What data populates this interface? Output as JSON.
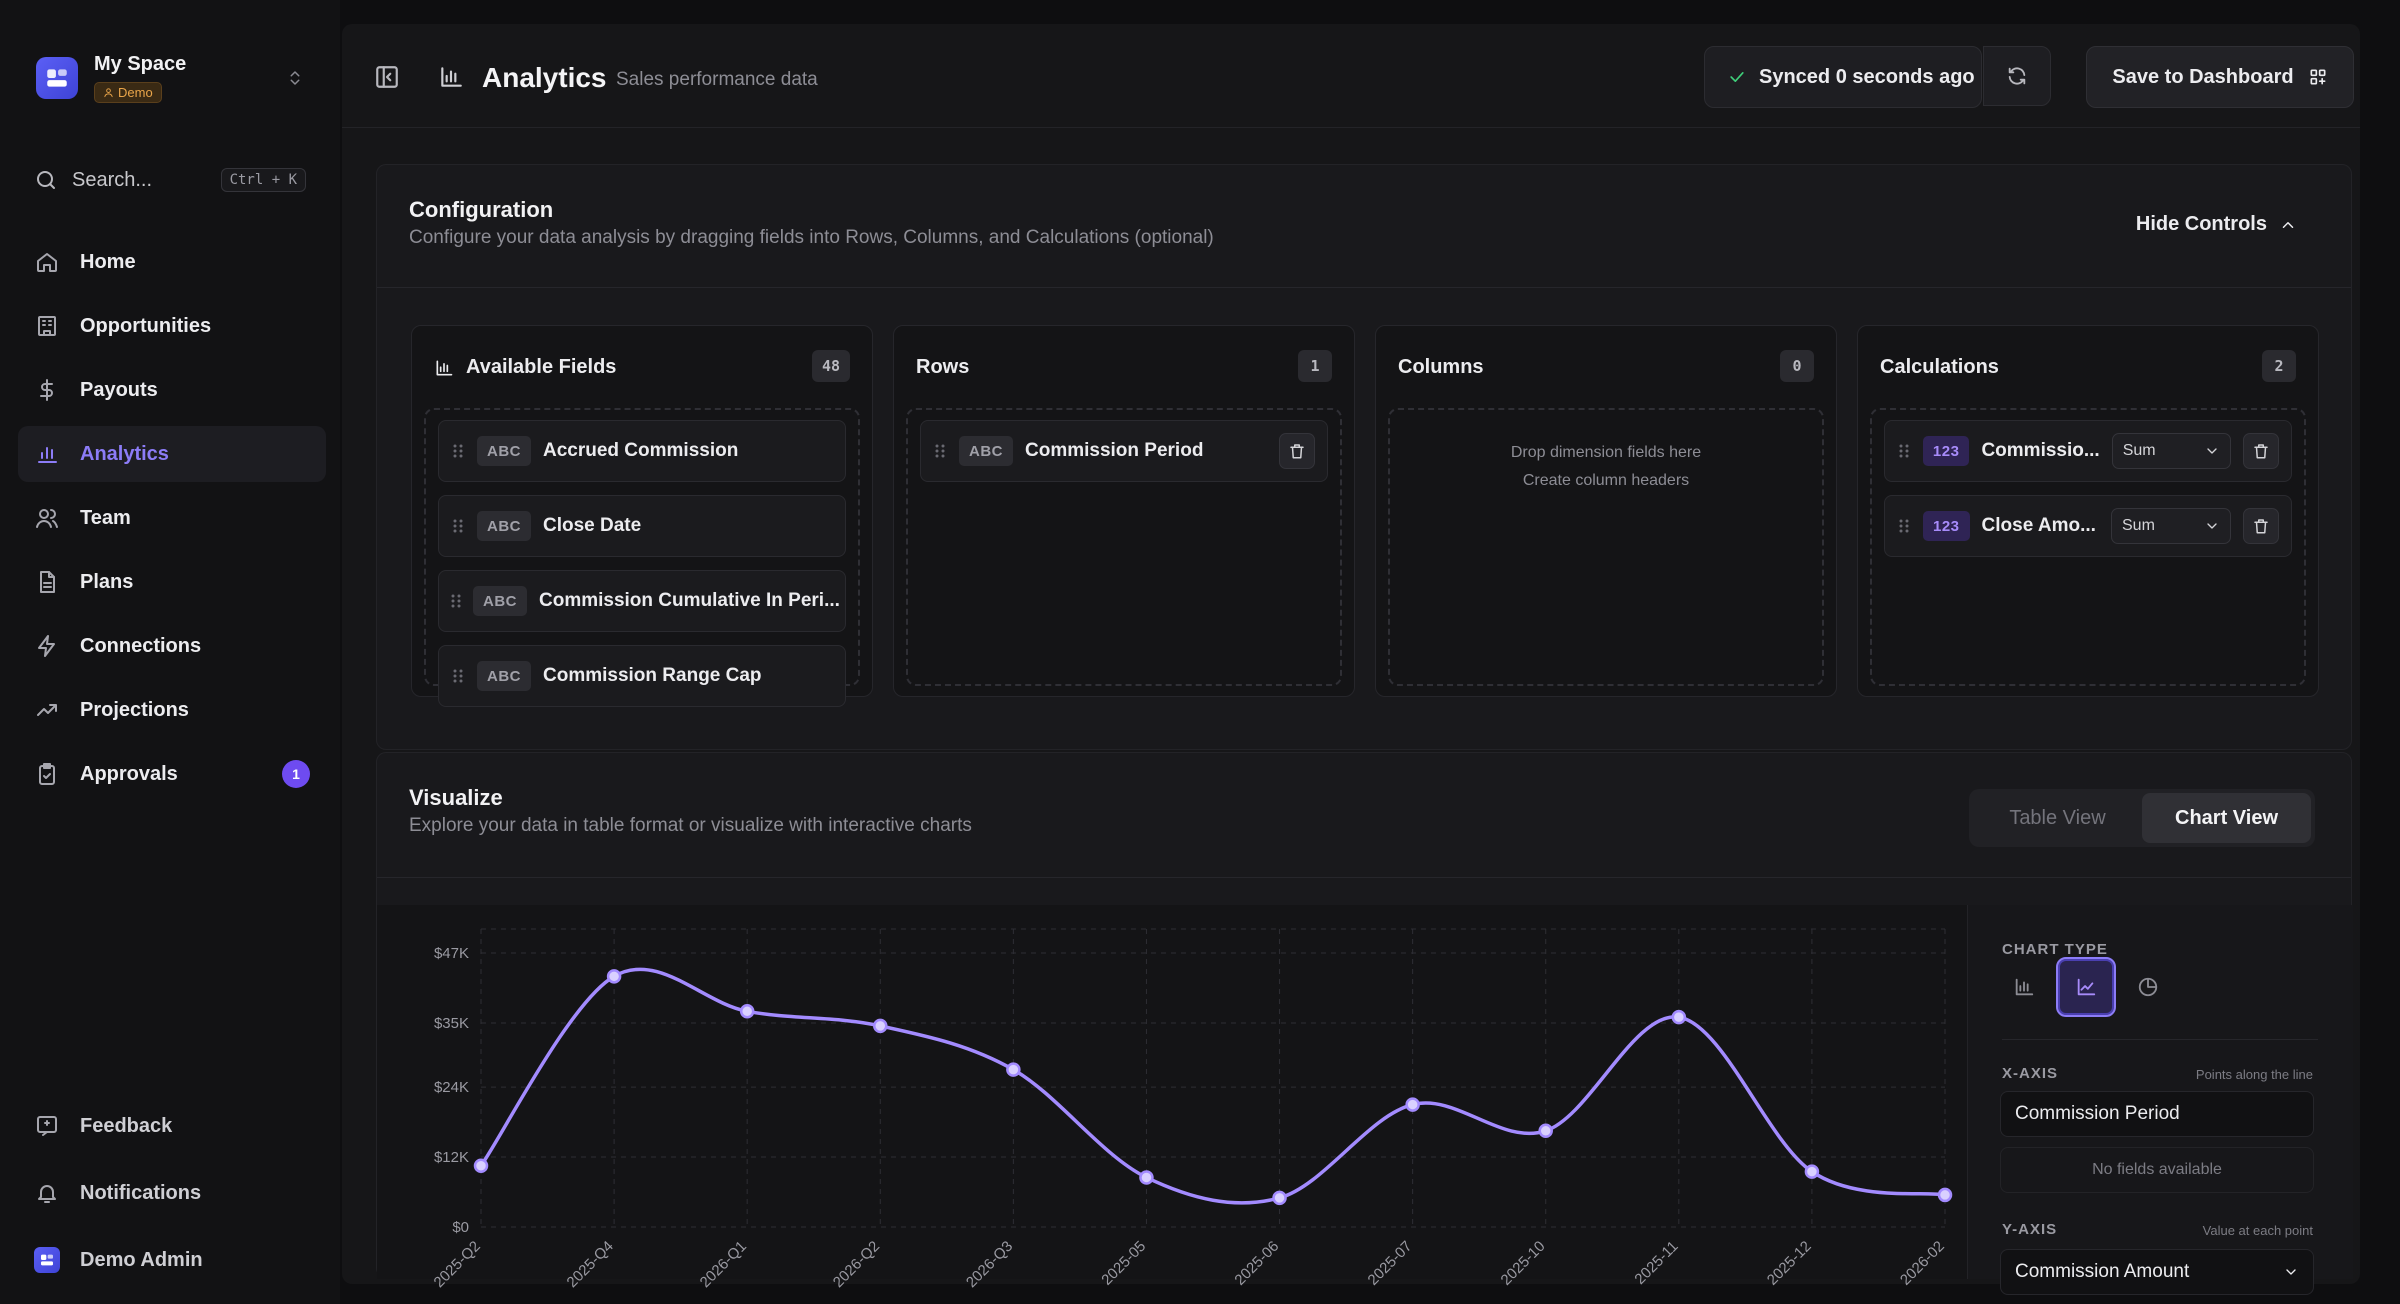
{
  "sidebar": {
    "workspace": {
      "name": "My Space",
      "badge": "Demo"
    },
    "search": {
      "label": "Search...",
      "shortcut": "Ctrl + K"
    },
    "items": [
      {
        "label": "Home",
        "icon": "home-icon"
      },
      {
        "label": "Opportunities",
        "icon": "building-icon"
      },
      {
        "label": "Payouts",
        "icon": "dollar-icon"
      },
      {
        "label": "Analytics",
        "icon": "bar-chart-icon",
        "active": true
      },
      {
        "label": "Team",
        "icon": "users-icon"
      },
      {
        "label": "Plans",
        "icon": "document-icon"
      },
      {
        "label": "Connections",
        "icon": "bolt-icon"
      },
      {
        "label": "Projections",
        "icon": "trending-up-icon"
      },
      {
        "label": "Approvals",
        "icon": "clipboard-check-icon",
        "badge": "1"
      }
    ],
    "bottom": [
      {
        "label": "Feedback",
        "icon": "feedback-icon"
      },
      {
        "label": "Notifications",
        "icon": "bell-icon"
      },
      {
        "label": "Demo Admin",
        "icon": "user-avatar-icon"
      }
    ]
  },
  "header": {
    "title": "Analytics",
    "subtitle": "Sales performance data",
    "sync_status": "Synced 0 seconds ago",
    "save_label": "Save to Dashboard"
  },
  "configuration": {
    "title": "Configuration",
    "subtitle": "Configure your data analysis by dragging fields into Rows, Columns, and Calculations (optional)",
    "toggle_label": "Hide Controls",
    "available": {
      "title": "Available Fields",
      "count": "48",
      "fields": [
        {
          "type": "ABC",
          "label": "Accrued Commission"
        },
        {
          "type": "ABC",
          "label": "Close Date"
        },
        {
          "type": "ABC",
          "label": "Commission Cumulative In Peri..."
        },
        {
          "type": "ABC",
          "label": "Commission Range Cap"
        }
      ]
    },
    "rows": {
      "title": "Rows",
      "count": "1",
      "fields": [
        {
          "type": "ABC",
          "label": "Commission Period"
        }
      ]
    },
    "columns": {
      "title": "Columns",
      "count": "0",
      "hint_1": "Drop dimension fields here",
      "hint_2": "Create column headers"
    },
    "calculations": {
      "title": "Calculations",
      "count": "2",
      "fields": [
        {
          "type": "123",
          "label": "Commissio...",
          "aggregation": "Sum"
        },
        {
          "type": "123",
          "label": "Close Amo...",
          "aggregation": "Sum"
        }
      ]
    }
  },
  "visualize": {
    "title": "Visualize",
    "subtitle": "Explore your data in table format or visualize with interactive charts",
    "views": [
      "Table View",
      "Chart View"
    ],
    "active_view": "Chart View",
    "side": {
      "chart_type_label": "CHART TYPE",
      "chart_types": [
        "bar-chart-icon",
        "line-chart-icon",
        "pie-chart-icon"
      ],
      "active_chart_type": "line-chart-icon",
      "x_axis_label": "X-AXIS",
      "x_axis_hint": "Points along the line",
      "x_axis_value": "Commission Period",
      "x_axis_empty": "No fields available",
      "y_axis_label": "Y-AXIS",
      "y_axis_hint": "Value at each point",
      "y_axis_value": "Commission Amount"
    }
  },
  "colors": {
    "accent": "#8c7cf7",
    "line": "#a38bff",
    "success": "#3fcf7a",
    "badge": "#6e4bf0"
  },
  "chart_data": {
    "type": "line",
    "categories": [
      "2025-Q2",
      "2025-Q4",
      "2026-Q1",
      "2026-Q2",
      "2026-Q3",
      "2025-05",
      "2025-06",
      "2025-07",
      "2025-10",
      "2025-11",
      "2025-12",
      "2026-02"
    ],
    "series": [
      {
        "values": [
          10500,
          43000,
          37000,
          34500,
          27000,
          8500,
          5000,
          21000,
          16500,
          36000,
          9500,
          5500
        ]
      }
    ],
    "y_ticks": [
      "$0",
      "$12K",
      "$24K",
      "$35K",
      "$47K"
    ],
    "y_tick_values": [
      0,
      12000,
      24000,
      35000,
      47000
    ],
    "ylim": [
      0,
      47000
    ],
    "grid": true
  }
}
